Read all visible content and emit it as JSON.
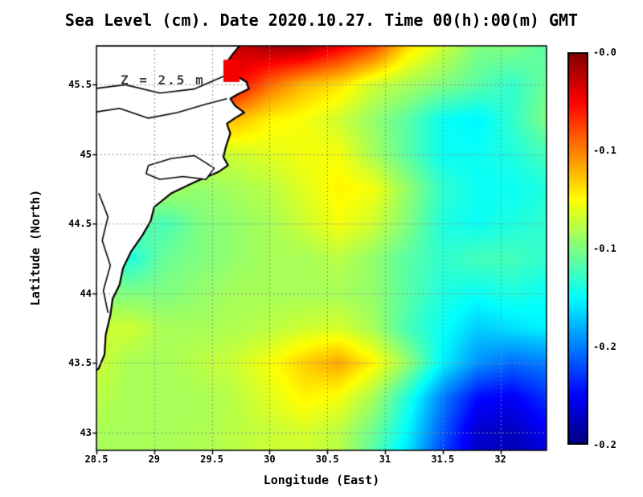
{
  "page": {
    "background": "#ffffff"
  },
  "chart_data": {
    "type": "heatmap",
    "title": "Sea Level (cm). Date 2020.10.27. Time 00(h):00(m) GMT",
    "xlabel": "Longitude (East)",
    "ylabel": "Latitude (North)",
    "annotation": "Z = 2.5 m",
    "grid_on": true,
    "colormap": "jet",
    "units": "m",
    "vmin": -0.26,
    "vmax": 0.0,
    "xlim": [
      28.5,
      32.4
    ],
    "ylim": [
      42.87,
      45.78
    ],
    "x_ticks": [
      "28.5",
      "29",
      "29.5",
      "30",
      "30.5",
      "31",
      "31.5",
      "32"
    ],
    "x_tick_values": [
      28.5,
      29,
      29.5,
      30,
      30.5,
      31,
      31.5,
      32
    ],
    "y_ticks": [
      "43",
      "43.5",
      "44",
      "44.5",
      "45",
      "45.5"
    ],
    "y_tick_values": [
      43,
      43.5,
      44,
      44.5,
      45,
      45.5
    ],
    "colorbar_labels": [
      "-0.0",
      "-0.1",
      "-0.1",
      "-0.2",
      "-0.2"
    ],
    "colors": {
      "land": "#ffffff",
      "coastline": "#000000",
      "gridline": "#8c8c8c",
      "frame": "#000000",
      "annotation": "#404040"
    },
    "grid": {
      "lons": [
        28.5,
        28.8,
        29.1,
        29.4,
        29.7,
        30.0,
        30.3,
        30.6,
        30.9,
        31.2,
        31.5,
        31.8,
        32.1,
        32.4
      ],
      "lats": [
        45.77,
        45.5,
        45.25,
        45.0,
        44.75,
        44.5,
        44.25,
        44.0,
        43.75,
        43.5,
        43.25,
        43.0,
        42.87
      ],
      "values": [
        [
          -0.1,
          -0.1,
          -0.1,
          -0.06,
          -0.02,
          -0.01,
          -0.01,
          -0.03,
          -0.05,
          -0.09,
          -0.11,
          -0.13,
          -0.13,
          -0.14
        ],
        [
          -0.1,
          -0.1,
          -0.1,
          -0.07,
          -0.03,
          -0.06,
          -0.08,
          -0.09,
          -0.11,
          -0.12,
          -0.13,
          -0.14,
          -0.15,
          -0.135
        ],
        [
          -0.1,
          -0.1,
          -0.1,
          -0.09,
          -0.08,
          -0.095,
          -0.1,
          -0.11,
          -0.125,
          -0.14,
          -0.16,
          -0.165,
          -0.15,
          -0.13
        ],
        [
          -0.11,
          -0.11,
          -0.11,
          -0.11,
          -0.11,
          -0.105,
          -0.1,
          -0.1,
          -0.12,
          -0.14,
          -0.16,
          -0.16,
          -0.155,
          -0.145
        ],
        [
          -0.12,
          -0.12,
          -0.12,
          -0.125,
          -0.12,
          -0.115,
          -0.105,
          -0.095,
          -0.1,
          -0.125,
          -0.15,
          -0.16,
          -0.16,
          -0.155
        ],
        [
          -0.13,
          -0.135,
          -0.145,
          -0.13,
          -0.125,
          -0.12,
          -0.11,
          -0.1,
          -0.11,
          -0.13,
          -0.155,
          -0.16,
          -0.155,
          -0.15
        ],
        [
          -0.14,
          -0.155,
          -0.135,
          -0.13,
          -0.125,
          -0.12,
          -0.12,
          -0.115,
          -0.125,
          -0.14,
          -0.15,
          -0.145,
          -0.145,
          -0.15
        ],
        [
          -0.13,
          -0.13,
          -0.13,
          -0.125,
          -0.12,
          -0.12,
          -0.12,
          -0.12,
          -0.125,
          -0.14,
          -0.155,
          -0.16,
          -0.155,
          -0.16
        ],
        [
          -0.11,
          -0.11,
          -0.12,
          -0.12,
          -0.118,
          -0.115,
          -0.11,
          -0.108,
          -0.12,
          -0.145,
          -0.16,
          -0.175,
          -0.17,
          -0.165
        ],
        [
          -0.11,
          -0.12,
          -0.12,
          -0.115,
          -0.11,
          -0.1,
          -0.085,
          -0.075,
          -0.095,
          -0.125,
          -0.165,
          -0.19,
          -0.2,
          -0.195
        ],
        [
          -0.115,
          -0.12,
          -0.12,
          -0.12,
          -0.115,
          -0.105,
          -0.095,
          -0.1,
          -0.12,
          -0.155,
          -0.195,
          -0.225,
          -0.23,
          -0.215
        ],
        [
          -0.12,
          -0.12,
          -0.12,
          -0.118,
          -0.115,
          -0.112,
          -0.108,
          -0.115,
          -0.135,
          -0.165,
          -0.205,
          -0.24,
          -0.245,
          -0.23
        ],
        [
          -0.12,
          -0.12,
          -0.12,
          -0.118,
          -0.115,
          -0.11,
          -0.11,
          -0.115,
          -0.14,
          -0.17,
          -0.21,
          -0.24,
          -0.245,
          -0.235
        ]
      ]
    },
    "coastline": [
      [
        29.74,
        45.78
      ],
      [
        29.68,
        45.72
      ],
      [
        29.63,
        45.66
      ],
      [
        29.66,
        45.6
      ],
      [
        29.72,
        45.56
      ],
      [
        29.8,
        45.52
      ],
      [
        29.82,
        45.47
      ],
      [
        29.72,
        45.43
      ],
      [
        29.66,
        45.4
      ],
      [
        29.7,
        45.35
      ],
      [
        29.78,
        45.3
      ],
      [
        29.7,
        45.26
      ],
      [
        29.63,
        45.22
      ],
      [
        29.66,
        45.15
      ],
      [
        29.62,
        45.05
      ],
      [
        29.6,
        44.98
      ],
      [
        29.64,
        44.92
      ],
      [
        29.55,
        44.87
      ],
      [
        29.35,
        44.8
      ],
      [
        29.15,
        44.72
      ],
      [
        29.0,
        44.62
      ],
      [
        28.97,
        44.52
      ],
      [
        28.9,
        44.42
      ],
      [
        28.8,
        44.3
      ],
      [
        28.73,
        44.18
      ],
      [
        28.7,
        44.06
      ],
      [
        28.64,
        43.96
      ],
      [
        28.62,
        43.84
      ],
      [
        28.58,
        43.7
      ],
      [
        28.57,
        43.56
      ],
      [
        28.52,
        43.46
      ],
      [
        28.46,
        43.42
      ],
      [
        28.46,
        45.78
      ]
    ],
    "lake": [
      [
        28.95,
        44.92
      ],
      [
        29.15,
        44.97
      ],
      [
        29.35,
        44.99
      ],
      [
        29.52,
        44.9
      ],
      [
        29.45,
        44.82
      ],
      [
        29.25,
        44.84
      ],
      [
        29.05,
        44.82
      ],
      [
        28.93,
        44.86
      ]
    ],
    "rivers": [
      [
        [
          28.46,
          45.3
        ],
        [
          28.7,
          45.33
        ],
        [
          28.95,
          45.26
        ],
        [
          29.2,
          45.3
        ],
        [
          29.45,
          45.36
        ],
        [
          29.63,
          45.4
        ]
      ],
      [
        [
          28.46,
          45.47
        ],
        [
          28.75,
          45.5
        ],
        [
          29.05,
          45.44
        ],
        [
          29.35,
          45.47
        ],
        [
          29.6,
          45.56
        ]
      ],
      [
        [
          28.52,
          44.72
        ],
        [
          28.6,
          44.55
        ],
        [
          28.55,
          44.38
        ],
        [
          28.62,
          44.2
        ],
        [
          28.56,
          44.02
        ],
        [
          28.6,
          43.86
        ]
      ]
    ],
    "delta_patch": {
      "lon": [
        29.6,
        29.74
      ],
      "lat": [
        45.52,
        45.68
      ],
      "value": -0.03
    }
  }
}
